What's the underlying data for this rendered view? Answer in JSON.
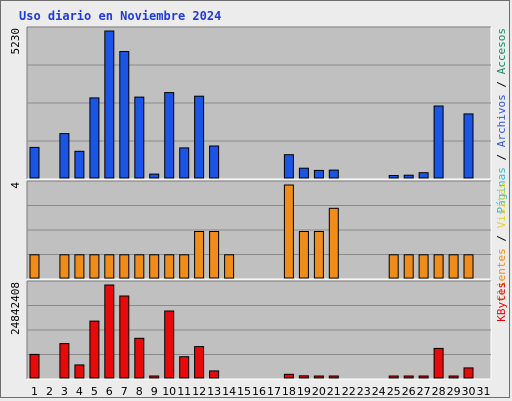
{
  "chart_data": {
    "type": "bar",
    "title": "Uso diario en Noviembre 2024",
    "categories": [
      "1",
      "2",
      "3",
      "4",
      "5",
      "6",
      "7",
      "8",
      "9",
      "10",
      "11",
      "12",
      "13",
      "14",
      "15",
      "16",
      "17",
      "18",
      "19",
      "20",
      "21",
      "22",
      "23",
      "24",
      "25",
      "26",
      "27",
      "28",
      "29",
      "30",
      "31"
    ],
    "weekend_days": [
      "2",
      "3",
      "9",
      "10",
      "16",
      "17",
      "23",
      "24",
      "30",
      "31"
    ],
    "colors": {
      "title": "#1f3bd9",
      "plot_bg": "#c0c0c0",
      "grid": "#8a8a8a",
      "weekday_label": "#000000",
      "weekend_label": "#1a8a4a"
    },
    "panels": [
      {
        "ymax_label": "5230",
        "ymax": 5230,
        "legend": [
          {
            "text": "Páginas",
            "color": "#33bbcc"
          },
          {
            "text": "Archivos",
            "color": "#3355dd"
          },
          {
            "text": "Accesos",
            "color": "#1a8a6a"
          }
        ],
        "legend_separator": " / ",
        "series": [
          {
            "name": "Páginas",
            "color": "#33bbcc",
            "values": [
              0,
              0,
              0,
              0,
              0,
              0,
              0,
              0,
              0,
              0,
              0,
              0,
              0,
              0,
              0,
              0,
              0,
              0,
              0,
              0,
              0,
              0,
              0,
              0,
              0,
              0,
              0,
              0,
              0,
              0,
              0
            ]
          },
          {
            "name": "Archivos",
            "color": "#1a55e6",
            "values": [
              1090,
              0,
              1580,
              950,
              2850,
              5230,
              4500,
              2880,
              140,
              3040,
              1070,
              2910,
              1140,
              0,
              0,
              0,
              0,
              830,
              350,
              270,
              280,
              0,
              0,
              0,
              90,
              100,
              190,
              2560,
              0,
              2280,
              0
            ]
          }
        ]
      },
      {
        "ymax_label": "4",
        "ymax": 4,
        "legend": [
          {
            "text": "Clientes",
            "color": "#f08c1a"
          },
          {
            "text": "Visitas",
            "color": "#e6d233"
          }
        ],
        "legend_separator": " / ",
        "series": [
          {
            "name": "Clientes",
            "color": "#f08c1a",
            "values": [
              1,
              0,
              1,
              1,
              1,
              1,
              1,
              1,
              1,
              1,
              1,
              2,
              2,
              1,
              0,
              0,
              0,
              4,
              2,
              2,
              3,
              0,
              0,
              0,
              1,
              1,
              1,
              1,
              1,
              1,
              0
            ]
          }
        ]
      },
      {
        "ymax_label": "24842408",
        "ymax": 24842408,
        "legend": [
          {
            "text": "KBytes",
            "color": "#e60a0a"
          }
        ],
        "legend_separator": "",
        "series": [
          {
            "name": "KBytes",
            "color": "#e60a0a",
            "values": [
              6300000,
              0,
              9200000,
              3500000,
              15200000,
              24842408,
              21900000,
              10600000,
              300000,
              17900000,
              5700000,
              8400000,
              1900000,
              0,
              0,
              0,
              0,
              1000000,
              600000,
              300000,
              300000,
              0,
              0,
              0,
              250000,
              250000,
              250000,
              7900000,
              300000,
              2700000,
              0
            ]
          }
        ]
      }
    ]
  }
}
